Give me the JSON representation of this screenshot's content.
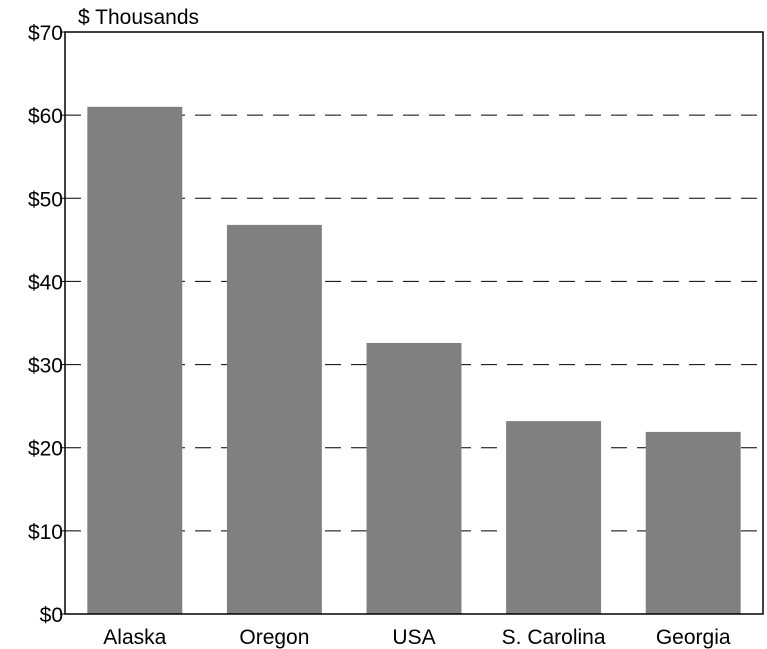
{
  "chart_data": {
    "type": "bar",
    "title": "",
    "xlabel": "",
    "ylabel": "",
    "y_unit_label": "$ Thousands",
    "categories": [
      "Alaska",
      "Oregon",
      "USA",
      "S. Carolina",
      "Georgia"
    ],
    "values": [
      61.0,
      46.8,
      32.6,
      23.2,
      21.9
    ],
    "ylim": [
      0,
      70
    ],
    "y_ticks": [
      0,
      10,
      20,
      30,
      40,
      50,
      60,
      70
    ],
    "y_tick_labels": [
      "$0",
      "$10",
      "$20",
      "$30",
      "$40",
      "$50",
      "$60",
      "$70"
    ],
    "grid": true,
    "grid_style": "dashed",
    "legend": "none",
    "colors": {
      "bar": "#808080",
      "axis": "#000000",
      "grid": "#000000",
      "background": "#ffffff"
    }
  }
}
